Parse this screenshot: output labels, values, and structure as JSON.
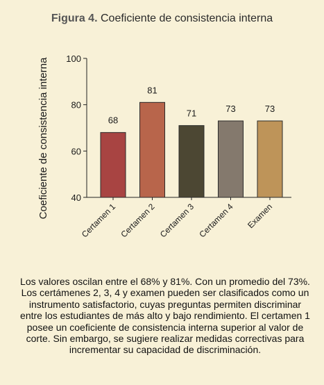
{
  "figure": {
    "label": "Figura 4.",
    "title": "Coeficiente de consistencia interna"
  },
  "chart_data": {
    "type": "bar",
    "title": "Figura 4. Coeficiente de consistencia interna",
    "xlabel": "",
    "ylabel": "Coeficiente de consistencia interna",
    "categories": [
      "Certamen 1",
      "Certamen 2",
      "Certamen 3",
      "Certamen 4",
      "Examen"
    ],
    "values": [
      68,
      81,
      71,
      73,
      73
    ],
    "data_labels": [
      "68",
      "81",
      "71",
      "73",
      "73"
    ],
    "ylim": [
      40,
      100
    ],
    "yticks": [
      40,
      60,
      80,
      100
    ],
    "grid": false,
    "legend": "none",
    "bar_colors": [
      "#a84442",
      "#b8654b",
      "#4c4733",
      "#84796d",
      "#be9459"
    ],
    "bar_edge_color": "#2b2b2b"
  },
  "caption": "Los valores oscilan entre el 68% y 81%. Con un promedio del 73%. Los certámenes 2, 3, 4 y examen pueden ser clasificados como un instrumento satisfactorio, cuyas preguntas permiten discriminar entre los estudiantes de más alto y bajo rendimiento. El certamen 1 posee un coeficiente de consistencia interna superior al valor de corte. Sin embargo, se sugiere realizar medidas correctivas para incrementar su capacidad de discriminación."
}
